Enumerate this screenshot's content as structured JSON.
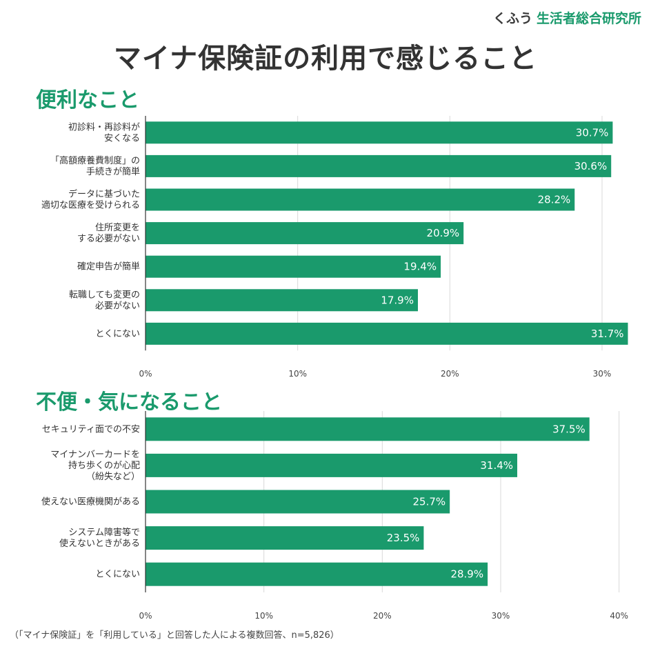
{
  "brand": {
    "logo_text": "くふう",
    "org_name": "生活者総合研究所"
  },
  "title": "マイナ保険証の利用で感じること",
  "colors": {
    "bar": "#1a9a6c",
    "section_title": "#1a9a6c",
    "grid": "#d9d9d9"
  },
  "chart_data": [
    {
      "type": "bar",
      "orientation": "horizontal",
      "title": "便利なこと",
      "categories": [
        "初診料・再診料が\n安くなる",
        "「高額療養費制度」の\n手続きが簡単",
        "データに基づいた\n適切な医療を受けられる",
        "住所変更を\nする必要がない",
        "確定申告が簡単",
        "転職しても変更の\n必要がない",
        "とくにない"
      ],
      "values": [
        30.7,
        30.6,
        28.2,
        20.9,
        19.4,
        17.9,
        31.7
      ],
      "value_labels": [
        "30.7%",
        "30.6%",
        "28.2%",
        "20.9%",
        "19.4%",
        "17.9%",
        "31.7%"
      ],
      "xlim": [
        0,
        30
      ],
      "ticks": [
        0,
        10,
        20,
        30
      ],
      "tick_labels": [
        "0%",
        "10%",
        "20%",
        "30%"
      ],
      "grid": true
    },
    {
      "type": "bar",
      "orientation": "horizontal",
      "title": "不便・気になること",
      "categories": [
        "セキュリティ面での不安",
        "マイナンバーカードを\n持ち歩くのが心配\n（紛失など）",
        "使えない医療機関がある",
        "システム障害等で\n使えないときがある",
        "とくにない"
      ],
      "values": [
        37.5,
        31.4,
        25.7,
        23.5,
        28.9
      ],
      "value_labels": [
        "37.5%",
        "31.4%",
        "25.7%",
        "23.5%",
        "28.9%"
      ],
      "xlim": [
        0,
        40
      ],
      "ticks": [
        0,
        10,
        20,
        30,
        40
      ],
      "tick_labels": [
        "0%",
        "10%",
        "20%",
        "30%",
        "40%"
      ],
      "grid": true
    }
  ],
  "footnote": "（「マイナ保険証」を「利用している」と回答した人による複数回答、n=5,826）"
}
